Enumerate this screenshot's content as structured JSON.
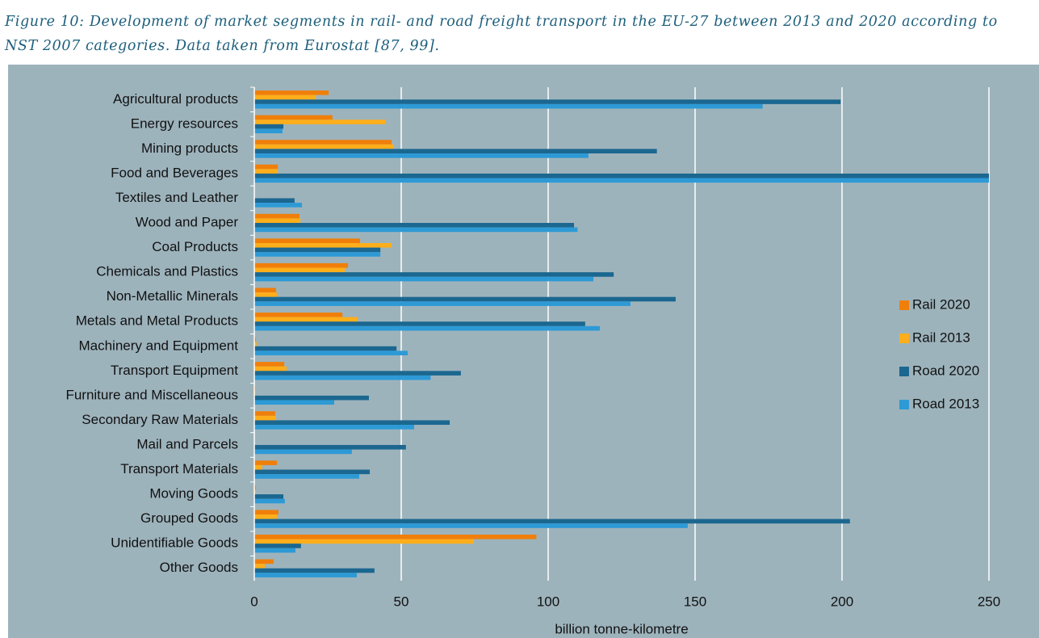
{
  "chart_data": {
    "type": "barh",
    "title": "Figure 10: Development of market segments in rail- and road freight transport in the EU-27 between 2013 and 2020 according to NST 2007 categories. Data taken from Eurostat [87, 99].",
    "xlabel": "billion tonne-kilometre",
    "categories": [
      "Agricultural products",
      "Energy resources",
      "Mining products",
      "Food and Beverages",
      "Textiles and Leather",
      "Wood and Paper",
      "Coal Products",
      "Chemicals and Plastics",
      "Non-Metallic Minerals",
      "Metals and Metal Products",
      "Machinery and Equipment",
      "Transport Equipment",
      "Furniture and Miscellaneous",
      "Secondary Raw Materials",
      "Mail and Parcels",
      "Transport Materials",
      "Moving Goods",
      "Grouped Goods",
      "Unidentifiable Goods",
      "Other Goods"
    ],
    "series": [
      {
        "name": "Rail 2020",
        "color": "#f07f0a",
        "values": [
          25.3,
          26.6,
          46.7,
          8,
          0,
          15.4,
          36,
          31.9,
          7.4,
          30,
          0.5,
          10.2,
          0.3,
          7.1,
          0,
          7.7,
          0.5,
          8.2,
          96,
          6.6
        ]
      },
      {
        "name": "Rail 2013",
        "color": "#fdae1a",
        "values": [
          21,
          44.8,
          47.5,
          8,
          0,
          15.7,
          46.7,
          30.8,
          7.7,
          35.2,
          0.8,
          11,
          0.3,
          7.4,
          0,
          2.7,
          0.3,
          7.7,
          74.7,
          3.6
        ]
      },
      {
        "name": "Road 2020",
        "color": "#1b6790",
        "values": [
          199.5,
          9.9,
          137,
          250,
          13.7,
          108.8,
          42.9,
          122.3,
          143.4,
          112.6,
          48.4,
          70.3,
          39,
          66.5,
          51.6,
          39.3,
          9.9,
          202.7,
          15.9,
          40.9
        ]
      },
      {
        "name": "Road 2013",
        "color": "#2d9ad6",
        "values": [
          173,
          9.6,
          113.7,
          250,
          16.2,
          110,
          42.9,
          115.4,
          128,
          117.6,
          52.2,
          60,
          27.2,
          54.4,
          33.2,
          35.7,
          10.4,
          147.5,
          14,
          34.9
        ]
      }
    ],
    "xlim": [
      0,
      250
    ],
    "xticks": [
      0,
      50,
      100,
      150,
      200,
      250
    ],
    "grid": true,
    "legend": "right"
  }
}
